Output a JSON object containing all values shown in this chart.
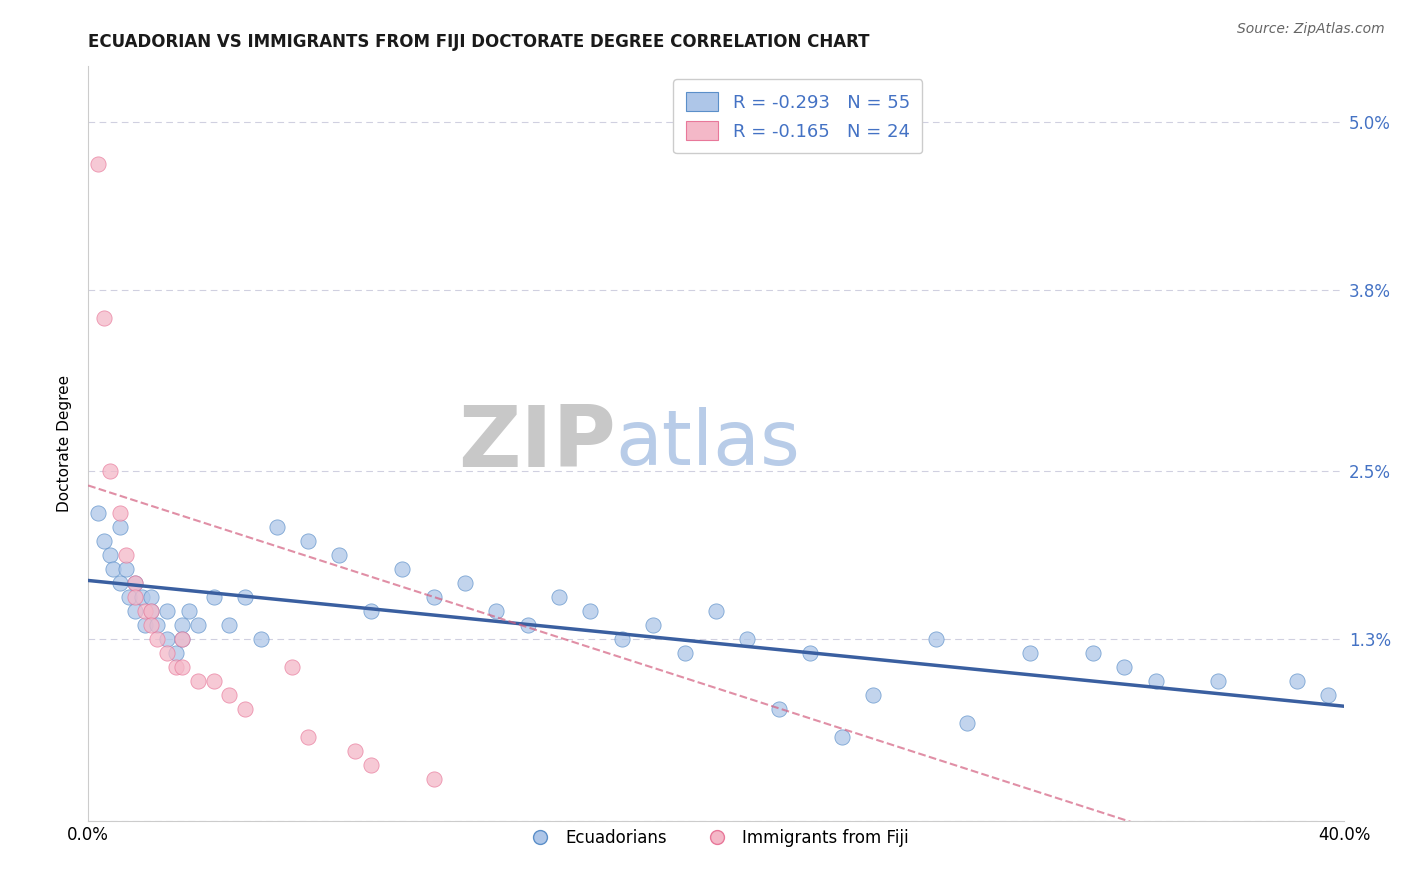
{
  "title": "ECUADORIAN VS IMMIGRANTS FROM FIJI DOCTORATE DEGREE CORRELATION CHART",
  "source_text": "Source: ZipAtlas.com",
  "xlabel": "",
  "ylabel": "Doctorate Degree",
  "xmin": 0.0,
  "xmax": 40.0,
  "ymin": 0.0,
  "ymax": 5.4,
  "yticks": [
    0.0,
    1.3,
    2.5,
    3.8,
    5.0
  ],
  "ytick_labels": [
    "",
    "1.3%",
    "2.5%",
    "3.8%",
    "5.0%"
  ],
  "xticks": [
    0.0,
    40.0
  ],
  "xtick_labels": [
    "0.0%",
    "40.0%"
  ],
  "legend_labels": [
    "Ecuadorians",
    "Immigrants from Fiji"
  ],
  "legend_r1": "R = -0.293",
  "legend_n1": "N = 55",
  "legend_r2": "R = -0.165",
  "legend_n2": "N = 24",
  "color_blue": "#aec6e8",
  "color_pink": "#f4b8c8",
  "color_blue_dark": "#5b8fc9",
  "color_pink_dark": "#e8789a",
  "color_blue_line": "#3a5fa0",
  "color_pink_line": "#d46080",
  "color_legend_text": "#4472c4",
  "watermark_zip": "#c8c8c8",
  "watermark_atlas": "#b8cce8",
  "background_color": "#ffffff",
  "grid_color": "#d0d0e0",
  "title_fontsize": 12,
  "ecuadorians_x": [
    0.3,
    0.5,
    0.7,
    0.8,
    1.0,
    1.0,
    1.2,
    1.3,
    1.5,
    1.5,
    1.7,
    1.8,
    2.0,
    2.0,
    2.2,
    2.5,
    2.5,
    2.8,
    3.0,
    3.0,
    3.2,
    3.5,
    4.0,
    4.5,
    5.0,
    5.5,
    6.0,
    7.0,
    8.0,
    9.0,
    10.0,
    11.0,
    12.0,
    13.0,
    14.0,
    15.0,
    16.0,
    17.0,
    18.0,
    19.0,
    20.0,
    21.0,
    22.0,
    23.0,
    24.0,
    25.0,
    27.0,
    28.0,
    30.0,
    32.0,
    33.0,
    34.0,
    36.0,
    38.5,
    39.5
  ],
  "ecuadorians_y": [
    2.2,
    2.0,
    1.9,
    1.8,
    1.7,
    2.1,
    1.8,
    1.6,
    1.7,
    1.5,
    1.6,
    1.4,
    1.5,
    1.6,
    1.4,
    1.5,
    1.3,
    1.2,
    1.4,
    1.3,
    1.5,
    1.4,
    1.6,
    1.4,
    1.6,
    1.3,
    2.1,
    2.0,
    1.9,
    1.5,
    1.8,
    1.6,
    1.7,
    1.5,
    1.4,
    1.6,
    1.5,
    1.3,
    1.4,
    1.2,
    1.5,
    1.3,
    0.8,
    1.2,
    0.6,
    0.9,
    1.3,
    0.7,
    1.2,
    1.2,
    1.1,
    1.0,
    1.0,
    1.0,
    0.9
  ],
  "fiji_x": [
    0.3,
    0.5,
    0.7,
    1.0,
    1.2,
    1.5,
    1.5,
    1.8,
    2.0,
    2.0,
    2.2,
    2.5,
    2.8,
    3.0,
    3.0,
    3.5,
    4.0,
    4.5,
    5.0,
    6.5,
    7.0,
    8.5,
    9.0,
    11.0
  ],
  "fiji_y": [
    4.7,
    3.6,
    2.5,
    2.2,
    1.9,
    1.7,
    1.6,
    1.5,
    1.5,
    1.4,
    1.3,
    1.2,
    1.1,
    1.3,
    1.1,
    1.0,
    1.0,
    0.9,
    0.8,
    1.1,
    0.6,
    0.5,
    0.4,
    0.3
  ],
  "ecu_trend_start_y": 1.72,
  "ecu_trend_end_y": 0.82,
  "fiji_trend_start_y": 2.4,
  "fiji_trend_end_y": -0.5
}
